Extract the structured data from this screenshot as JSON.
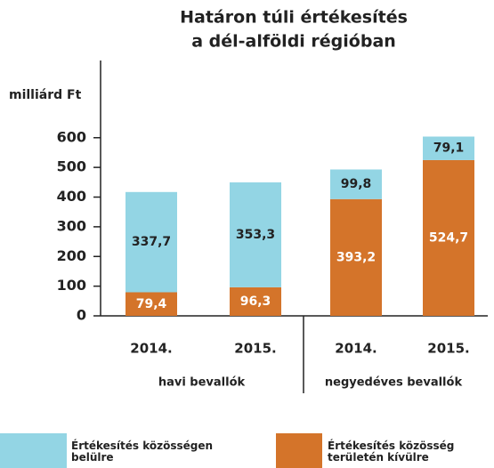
{
  "chart_data": {
    "type": "stacked_bar",
    "title": [
      "Határon túli értékesítés",
      "a dél-alföldi régióban"
    ],
    "y_label": "milliárd Ft",
    "categories": [
      "2014.",
      "2015.",
      "2014.",
      "2015."
    ],
    "groups": [
      {
        "label": "havi bevallók",
        "categories": [
          0,
          1
        ]
      },
      {
        "label": "negyedéves bevallók",
        "categories": [
          2,
          3
        ]
      }
    ],
    "series": [
      {
        "name": "Értékesítés közösségen belülre",
        "color": "#93d5e4",
        "values": [
          337.7,
          353.3,
          99.8,
          79.1
        ],
        "value_labels": [
          "337,7",
          "353,3",
          "99,8",
          "79,1"
        ]
      },
      {
        "name": "Értékesítés közösség területén kívülre",
        "color": "#d4742a",
        "values": [
          79.4,
          96.3,
          393.2,
          524.7
        ],
        "value_labels": [
          "79,4",
          "96,3",
          "393,2",
          "524,7"
        ]
      }
    ],
    "ylim": [
      0,
      860
    ],
    "yticks": [
      0,
      100,
      200,
      300,
      400,
      500,
      600
    ]
  }
}
